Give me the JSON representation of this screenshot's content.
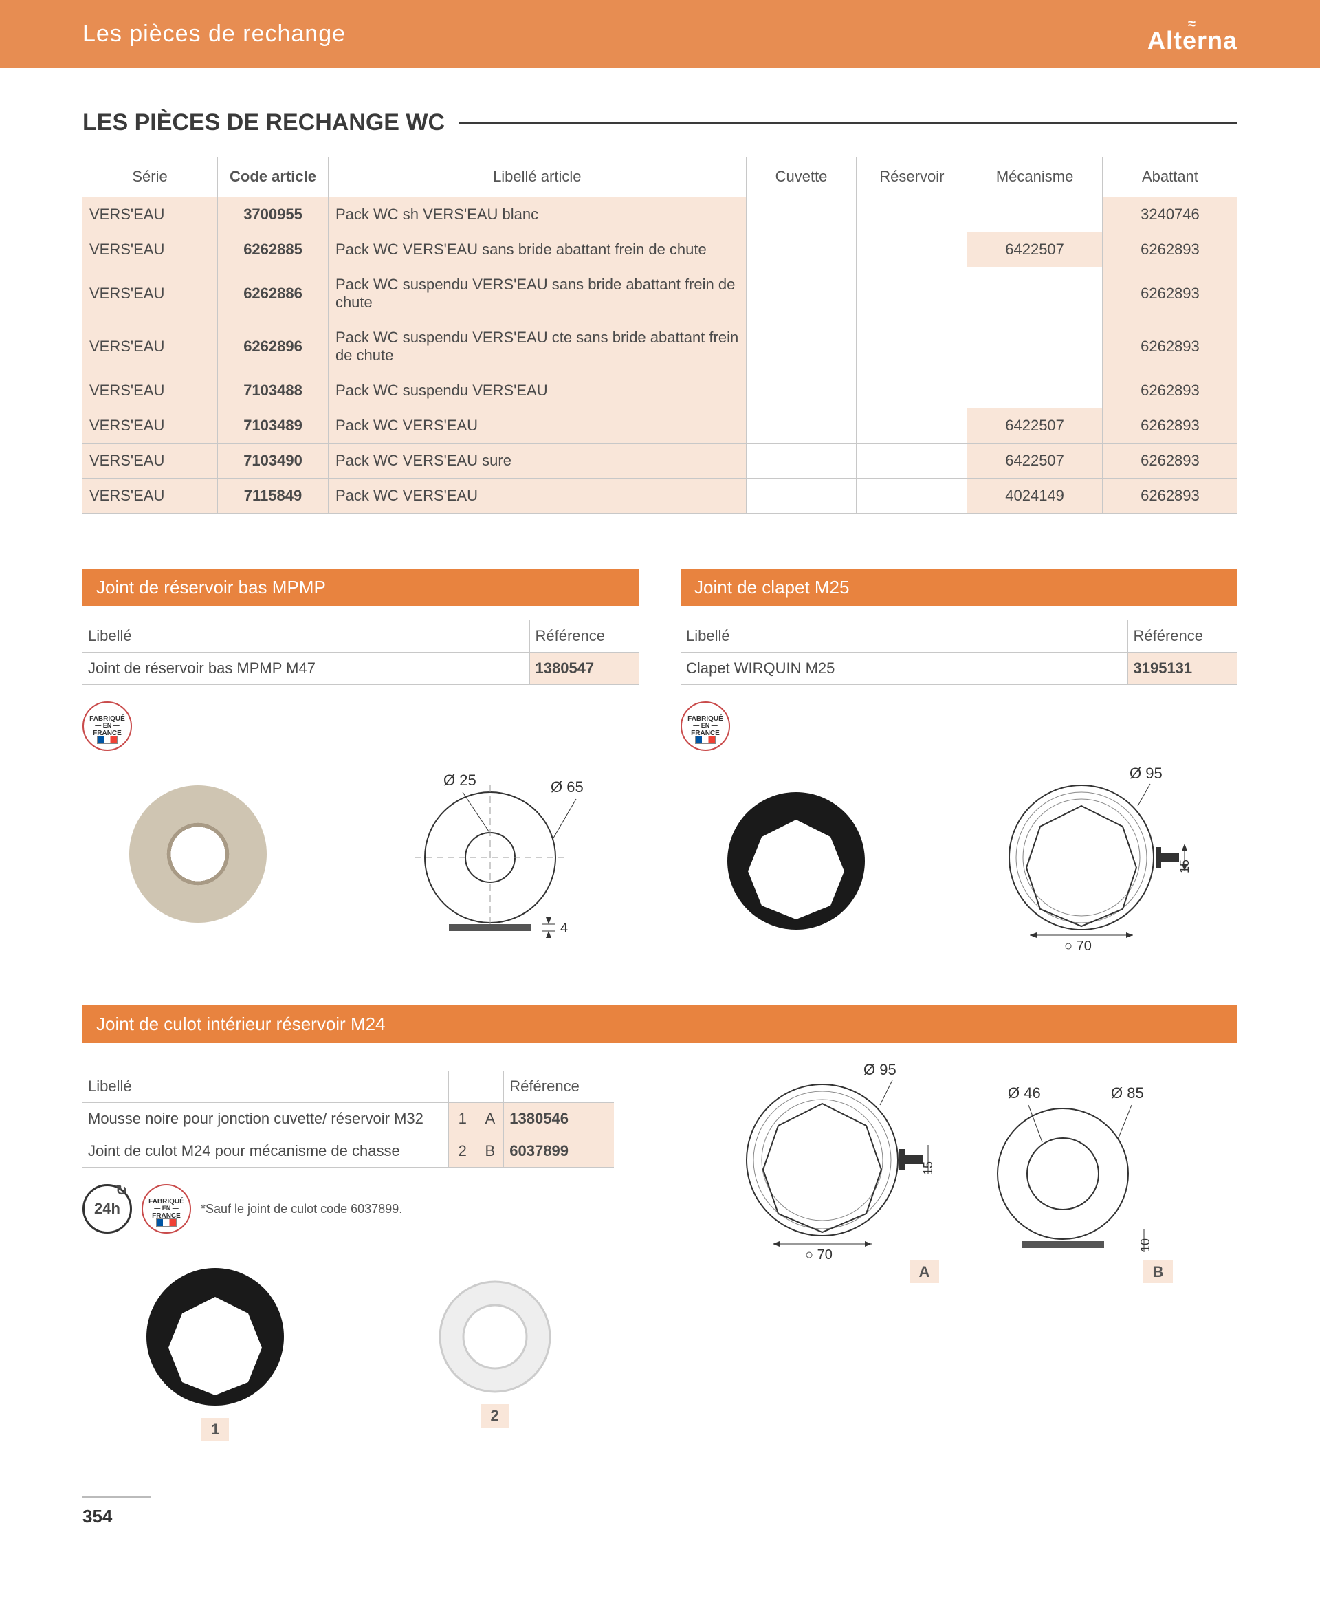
{
  "header": {
    "section": "Les pièces de rechange",
    "brand": "Alterna",
    "brand_wave": "≈"
  },
  "heading": "LES PIÈCES DE RECHANGE WC",
  "main_table": {
    "columns": [
      "Série",
      "Code article",
      "Libellé article",
      "Cuvette",
      "Réservoir",
      "Mécanisme",
      "Abattant"
    ],
    "rows": [
      {
        "serie": "VERS'EAU",
        "code": "3700955",
        "libelle": "Pack WC sh VERS'EAU blanc",
        "cuvette": "",
        "reservoir": "",
        "mecanisme": "",
        "abattant": "3240746"
      },
      {
        "serie": "VERS'EAU",
        "code": "6262885",
        "libelle": "Pack WC VERS'EAU sans bride abattant frein de chute",
        "cuvette": "",
        "reservoir": "",
        "mecanisme": "6422507",
        "abattant": "6262893"
      },
      {
        "serie": "VERS'EAU",
        "code": "6262886",
        "libelle": "Pack WC suspendu VERS'EAU sans bride abattant frein de chute",
        "cuvette": "",
        "reservoir": "",
        "mecanisme": "",
        "abattant": "6262893"
      },
      {
        "serie": "VERS'EAU",
        "code": "6262896",
        "libelle": "Pack WC suspendu VERS'EAU cte sans bride abattant frein de chute",
        "cuvette": "",
        "reservoir": "",
        "mecanisme": "",
        "abattant": "6262893"
      },
      {
        "serie": "VERS'EAU",
        "code": "7103488",
        "libelle": "Pack WC suspendu VERS'EAU",
        "cuvette": "",
        "reservoir": "",
        "mecanisme": "",
        "abattant": "6262893"
      },
      {
        "serie": "VERS'EAU",
        "code": "7103489",
        "libelle": "Pack WC VERS'EAU",
        "cuvette": "",
        "reservoir": "",
        "mecanisme": "6422507",
        "abattant": "6262893"
      },
      {
        "serie": "VERS'EAU",
        "code": "7103490",
        "libelle": "Pack WC VERS'EAU sure",
        "cuvette": "",
        "reservoir": "",
        "mecanisme": "6422507",
        "abattant": "6262893"
      },
      {
        "serie": "VERS'EAU",
        "code": "7115849",
        "libelle": "Pack WC VERS'EAU",
        "cuvette": "",
        "reservoir": "",
        "mecanisme": "4024149",
        "abattant": "6262893"
      }
    ]
  },
  "block1": {
    "title": "Joint de réservoir bas MPMP",
    "cols": [
      "Libellé",
      "Référence"
    ],
    "row": {
      "libelle": "Joint de réservoir bas MPMP M47",
      "ref": "1380547"
    },
    "dims": {
      "inner": "Ø 25",
      "outer": "Ø 65",
      "thick": "4"
    }
  },
  "block2": {
    "title": "Joint de clapet M25",
    "cols": [
      "Libellé",
      "Référence"
    ],
    "row": {
      "libelle": "Clapet WIRQUIN M25",
      "ref": "3195131"
    },
    "dims": {
      "outer": "Ø 95",
      "inner": "○ 70",
      "height": "15"
    }
  },
  "block3": {
    "title": "Joint de culot intérieur réservoir M24",
    "cols": [
      "Libellé",
      "",
      "",
      "Référence"
    ],
    "rows": [
      {
        "libelle": "Mousse noire pour jonction cuvette/ réservoir M32",
        "num": "1",
        "let": "A",
        "ref": "1380546"
      },
      {
        "libelle": "Joint de culot M24 pour mécanisme de chasse",
        "num": "2",
        "let": "B",
        "ref": "6037899"
      }
    ],
    "note": "*Sauf le joint de culot code 6037899.",
    "h24": "24h",
    "dimsA": {
      "outer": "Ø 95",
      "inner": "○ 70",
      "height": "15",
      "tag": "A"
    },
    "dimsB": {
      "d1": "Ø 46",
      "d2": "Ø 85",
      "h": "10",
      "tag": "B"
    }
  },
  "badges": {
    "fab_line1": "FABRIQUÉ",
    "fab_line2": "— EN —",
    "fab_line3": "FRANCE"
  },
  "page_number": "354",
  "colors": {
    "orange": "#e8833f",
    "light_orange": "#f9e6d9",
    "header_orange": "#e78d52",
    "text": "#4a4a4a",
    "border": "#c8c8c8"
  }
}
